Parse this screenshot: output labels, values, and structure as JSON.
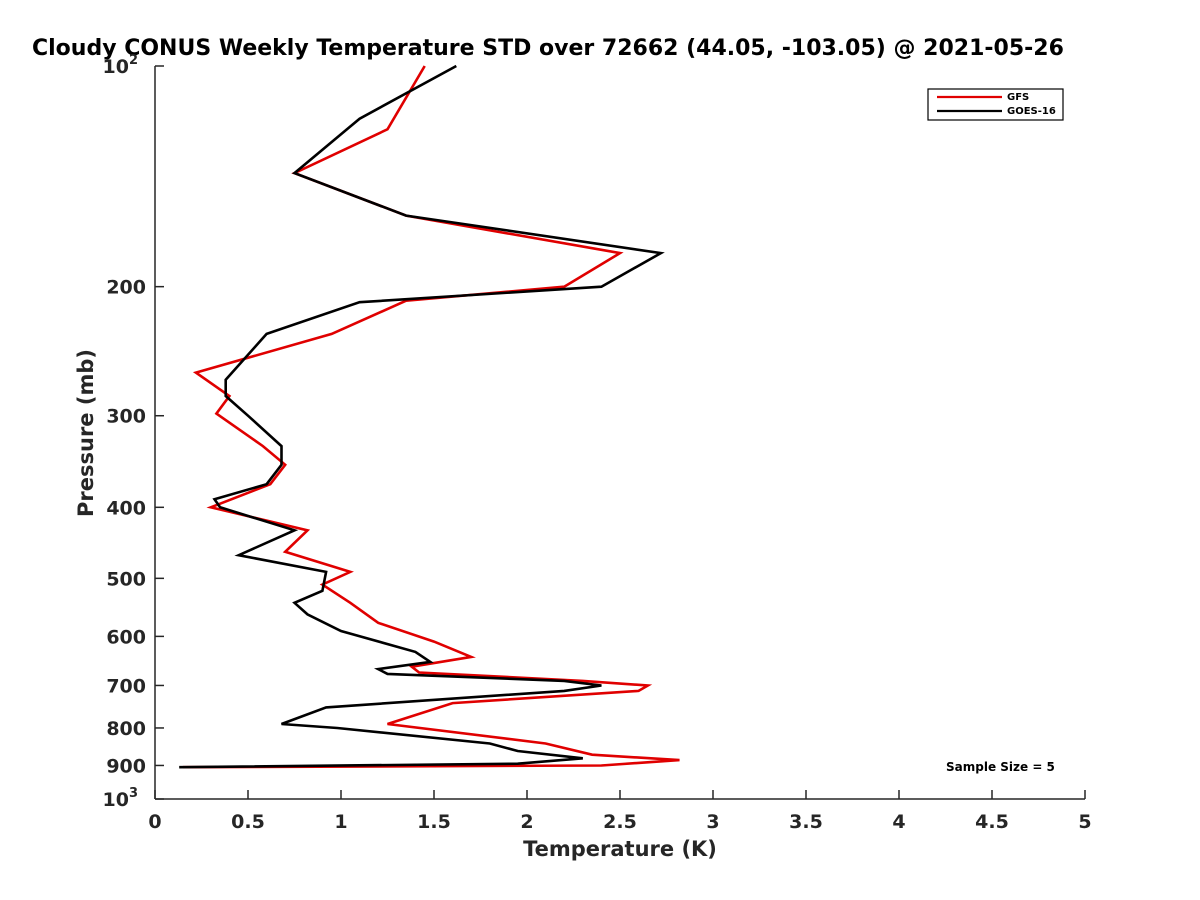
{
  "chart_data": {
    "type": "line",
    "title": "Cloudy CONUS Weekly Temperature STD over 72662 (44.05, -103.05) @ 2021-05-26",
    "xlabel": "Temperature (K)",
    "ylabel": "Pressure (mb)",
    "xlim": [
      0,
      5
    ],
    "ylim": [
      100,
      1000
    ],
    "y_scale": "log",
    "y_reversed": true,
    "grid": false,
    "legend_position": "top-right",
    "x_ticks": [
      "0",
      "0.5",
      "1",
      "1.5",
      "2",
      "2.5",
      "3",
      "3.5",
      "4",
      "4.5",
      "5"
    ],
    "y_ticks": [
      {
        "value": 100,
        "base": "10",
        "exp": "2"
      },
      {
        "value": 200,
        "label": "200"
      },
      {
        "value": 300,
        "label": "300"
      },
      {
        "value": 400,
        "label": "400"
      },
      {
        "value": 500,
        "label": "500"
      },
      {
        "value": 600,
        "label": "600"
      },
      {
        "value": 700,
        "label": "700"
      },
      {
        "value": 800,
        "label": "800"
      },
      {
        "value": 900,
        "label": "900"
      },
      {
        "value": 1000,
        "base": "10",
        "exp": "3"
      }
    ],
    "series": [
      {
        "name": "GFS",
        "color": "#e00000",
        "points": [
          [
            1.45,
            100
          ],
          [
            1.25,
            122
          ],
          [
            0.75,
            140
          ],
          [
            1.35,
            160
          ],
          [
            2.5,
            180
          ],
          [
            2.2,
            200
          ],
          [
            1.35,
            209
          ],
          [
            0.95,
            232
          ],
          [
            0.22,
            262
          ],
          [
            0.4,
            282
          ],
          [
            0.33,
            298
          ],
          [
            0.58,
            330
          ],
          [
            0.7,
            350
          ],
          [
            0.62,
            372
          ],
          [
            0.3,
            400
          ],
          [
            0.82,
            430
          ],
          [
            0.7,
            460
          ],
          [
            1.05,
            490
          ],
          [
            0.9,
            510
          ],
          [
            1.05,
            540
          ],
          [
            1.2,
            575
          ],
          [
            1.5,
            610
          ],
          [
            1.7,
            640
          ],
          [
            1.38,
            660
          ],
          [
            1.42,
            672
          ],
          [
            2.3,
            690
          ],
          [
            2.65,
            700
          ],
          [
            2.6,
            712
          ],
          [
            1.6,
            740
          ],
          [
            1.25,
            790
          ],
          [
            2.1,
            840
          ],
          [
            2.35,
            870
          ],
          [
            2.82,
            885
          ],
          [
            2.4,
            900
          ],
          [
            0.15,
            905
          ]
        ]
      },
      {
        "name": "GOES-16",
        "color": "#000000",
        "points": [
          [
            1.62,
            100
          ],
          [
            1.1,
            118
          ],
          [
            0.75,
            140
          ],
          [
            1.35,
            160
          ],
          [
            2.72,
            180
          ],
          [
            2.4,
            200
          ],
          [
            1.1,
            210
          ],
          [
            0.6,
            232
          ],
          [
            0.38,
            268
          ],
          [
            0.38,
            282
          ],
          [
            0.5,
            300
          ],
          [
            0.68,
            330
          ],
          [
            0.68,
            350
          ],
          [
            0.6,
            372
          ],
          [
            0.32,
            390
          ],
          [
            0.35,
            400
          ],
          [
            0.75,
            430
          ],
          [
            0.45,
            465
          ],
          [
            0.92,
            490
          ],
          [
            0.9,
            520
          ],
          [
            0.75,
            540
          ],
          [
            0.82,
            560
          ],
          [
            1.0,
            590
          ],
          [
            1.4,
            630
          ],
          [
            1.48,
            650
          ],
          [
            1.2,
            665
          ],
          [
            1.25,
            675
          ],
          [
            2.2,
            690
          ],
          [
            2.4,
            700
          ],
          [
            2.2,
            712
          ],
          [
            0.92,
            750
          ],
          [
            0.68,
            790
          ],
          [
            0.98,
            800
          ],
          [
            1.8,
            840
          ],
          [
            1.95,
            860
          ],
          [
            2.3,
            880
          ],
          [
            1.95,
            895
          ],
          [
            0.13,
            905
          ]
        ]
      }
    ],
    "annotations": [
      "Sample Size = 5"
    ]
  }
}
